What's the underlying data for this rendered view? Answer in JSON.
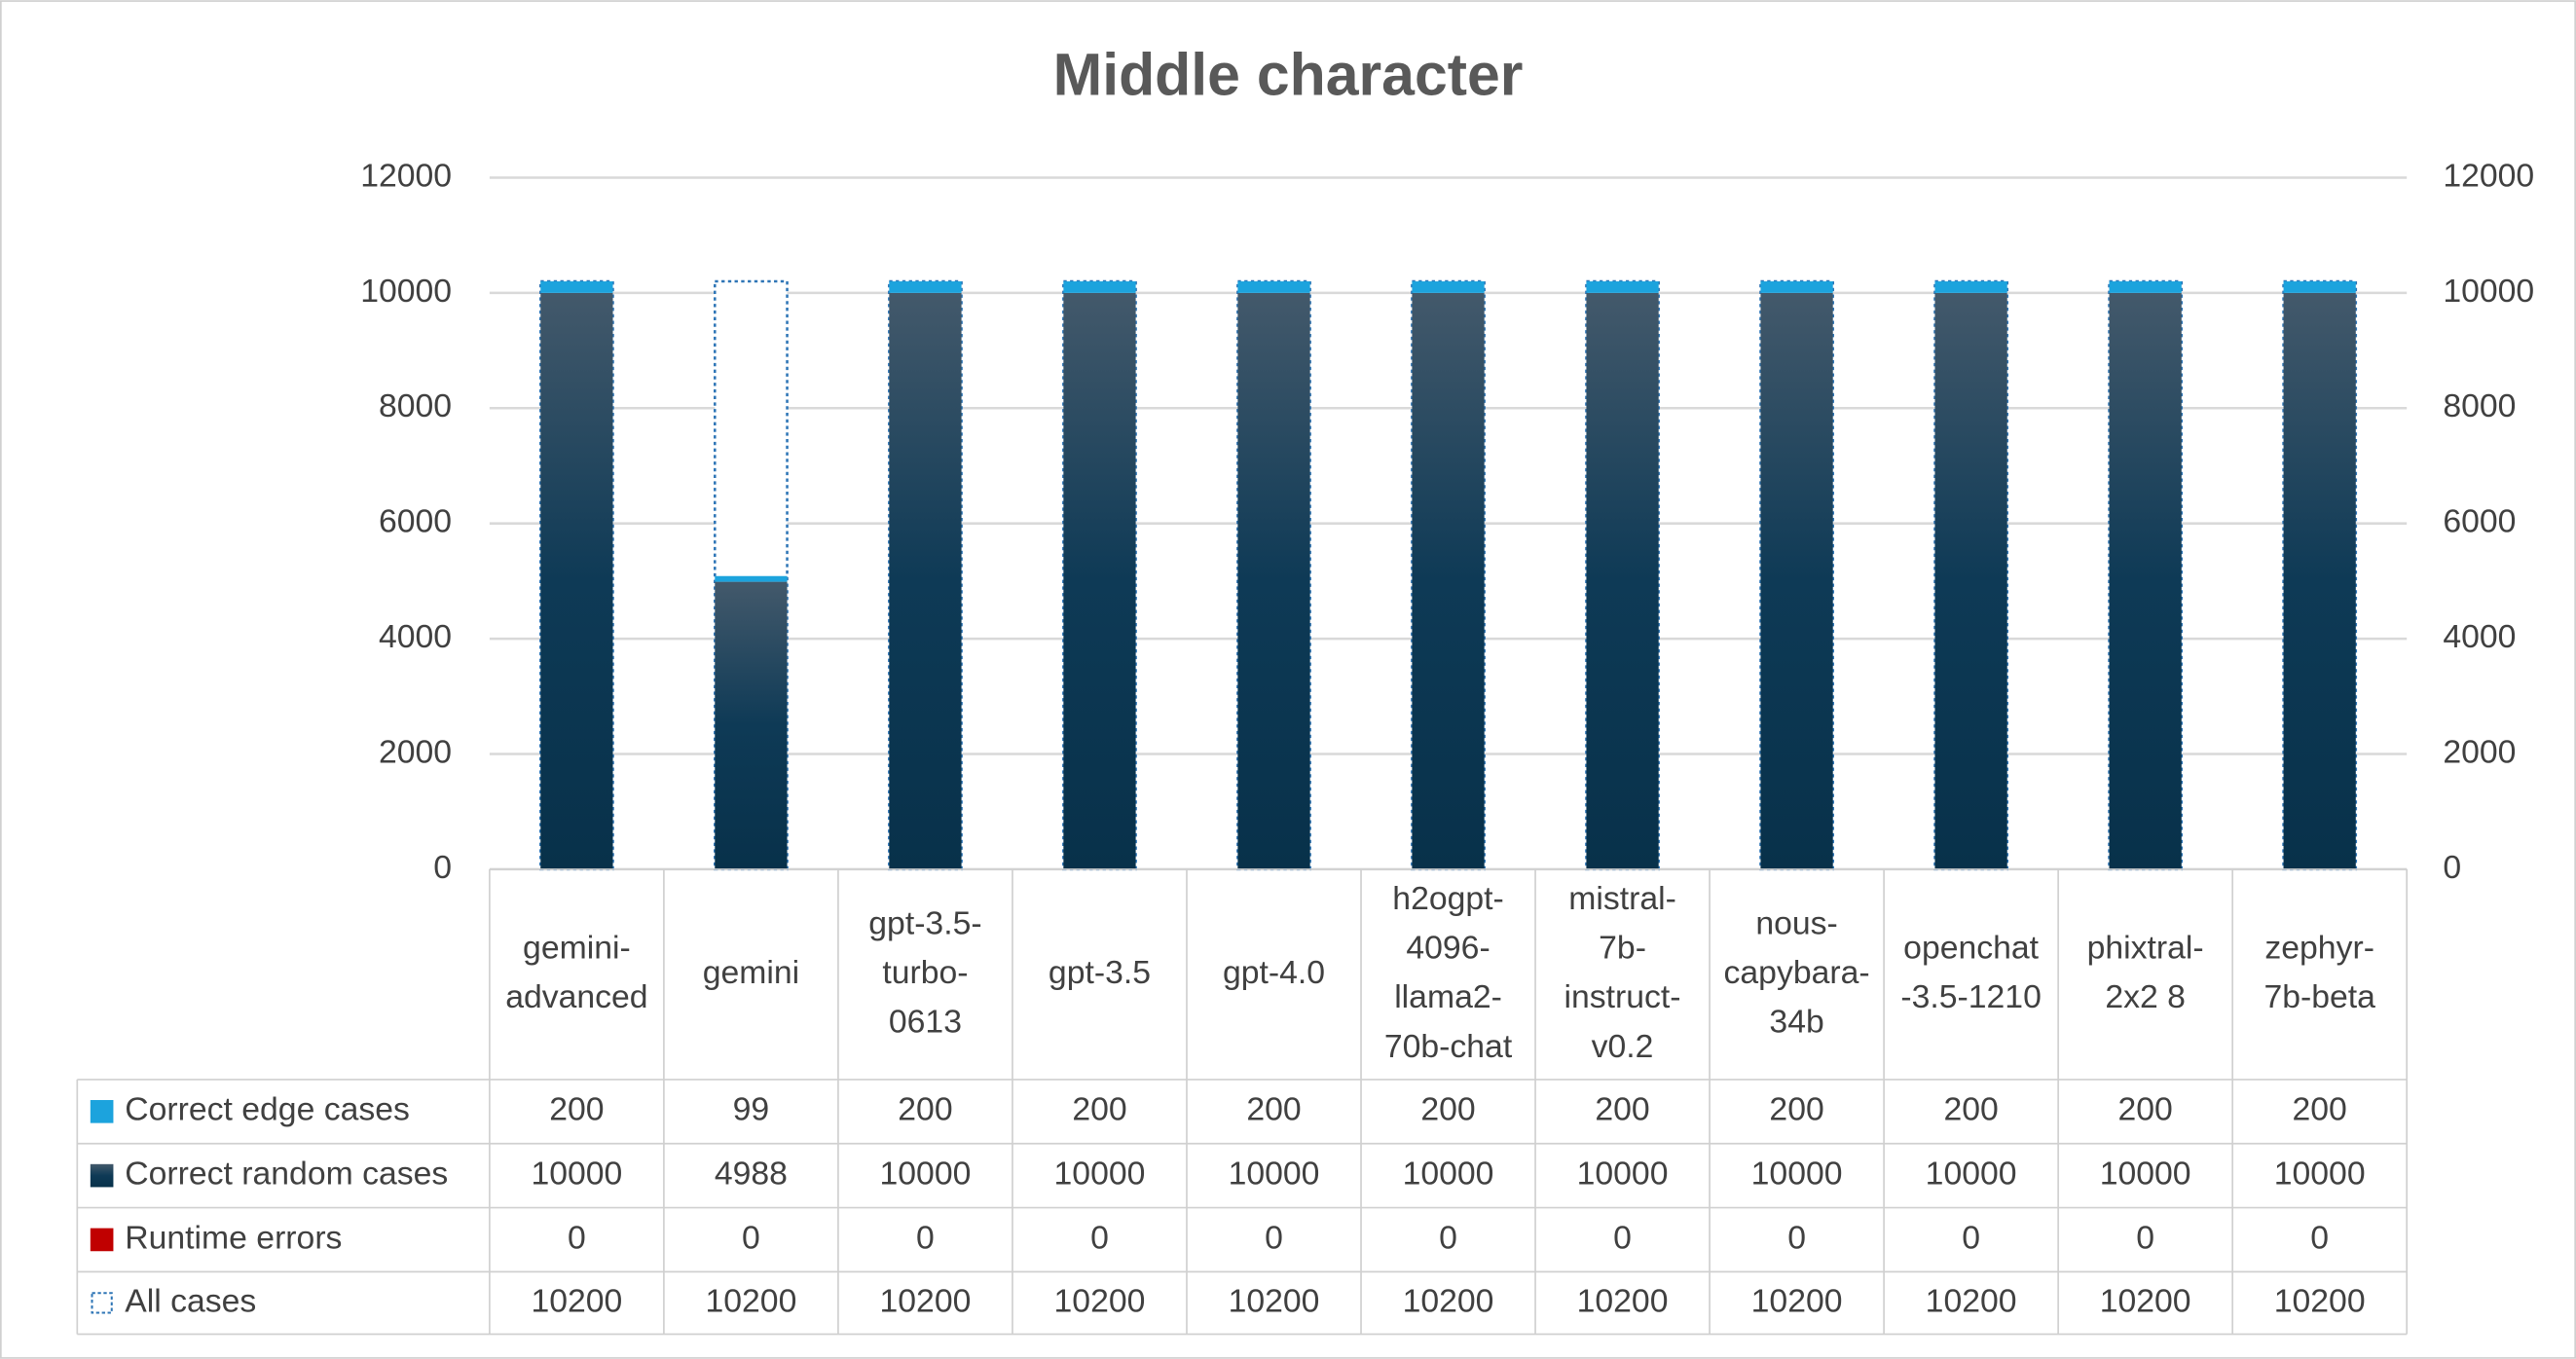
{
  "chart_data": {
    "type": "stacked-bar-table",
    "title": "Middle character",
    "categories": [
      "gemini-\nadvanced",
      "gemini",
      "gpt-3.5-\nturbo-\n0613",
      "gpt-3.5",
      "gpt-4.0",
      "h2ogpt-\n4096-\nllama2-\n70b-chat",
      "mistral-\n7b-\ninstruct-\nv0.2",
      "nous-\ncapybara-\n34b",
      "openchat\n-3.5-1210",
      "phixtral-\n2x2 8",
      "zephyr-\n7b-beta"
    ],
    "series": [
      {
        "name": "Correct edge cases",
        "color": "#1ca3dd",
        "values": [
          200,
          99,
          200,
          200,
          200,
          200,
          200,
          200,
          200,
          200,
          200
        ]
      },
      {
        "name": "Correct random cases",
        "color": "#0b3550",
        "values": [
          10000,
          4988,
          10000,
          10000,
          10000,
          10000,
          10000,
          10000,
          10000,
          10000,
          10000
        ]
      },
      {
        "name": "Runtime errors",
        "color": "#c00000",
        "values": [
          0,
          0,
          0,
          0,
          0,
          0,
          0,
          0,
          0,
          0,
          0
        ]
      },
      {
        "name": "All cases",
        "color": "#2e75b6",
        "style": "dotted-outline",
        "axis": "y2",
        "values": [
          10200,
          10200,
          10200,
          10200,
          10200,
          10200,
          10200,
          10200,
          10200,
          10200,
          10200
        ]
      }
    ],
    "ylim": [
      0,
      12000
    ],
    "yticks": [
      0,
      2000,
      4000,
      6000,
      8000,
      10000,
      12000
    ],
    "y2lim": [
      0,
      12000
    ],
    "y2ticks": [
      0,
      2000,
      4000,
      6000,
      8000,
      10000,
      12000
    ],
    "grid": true
  }
}
